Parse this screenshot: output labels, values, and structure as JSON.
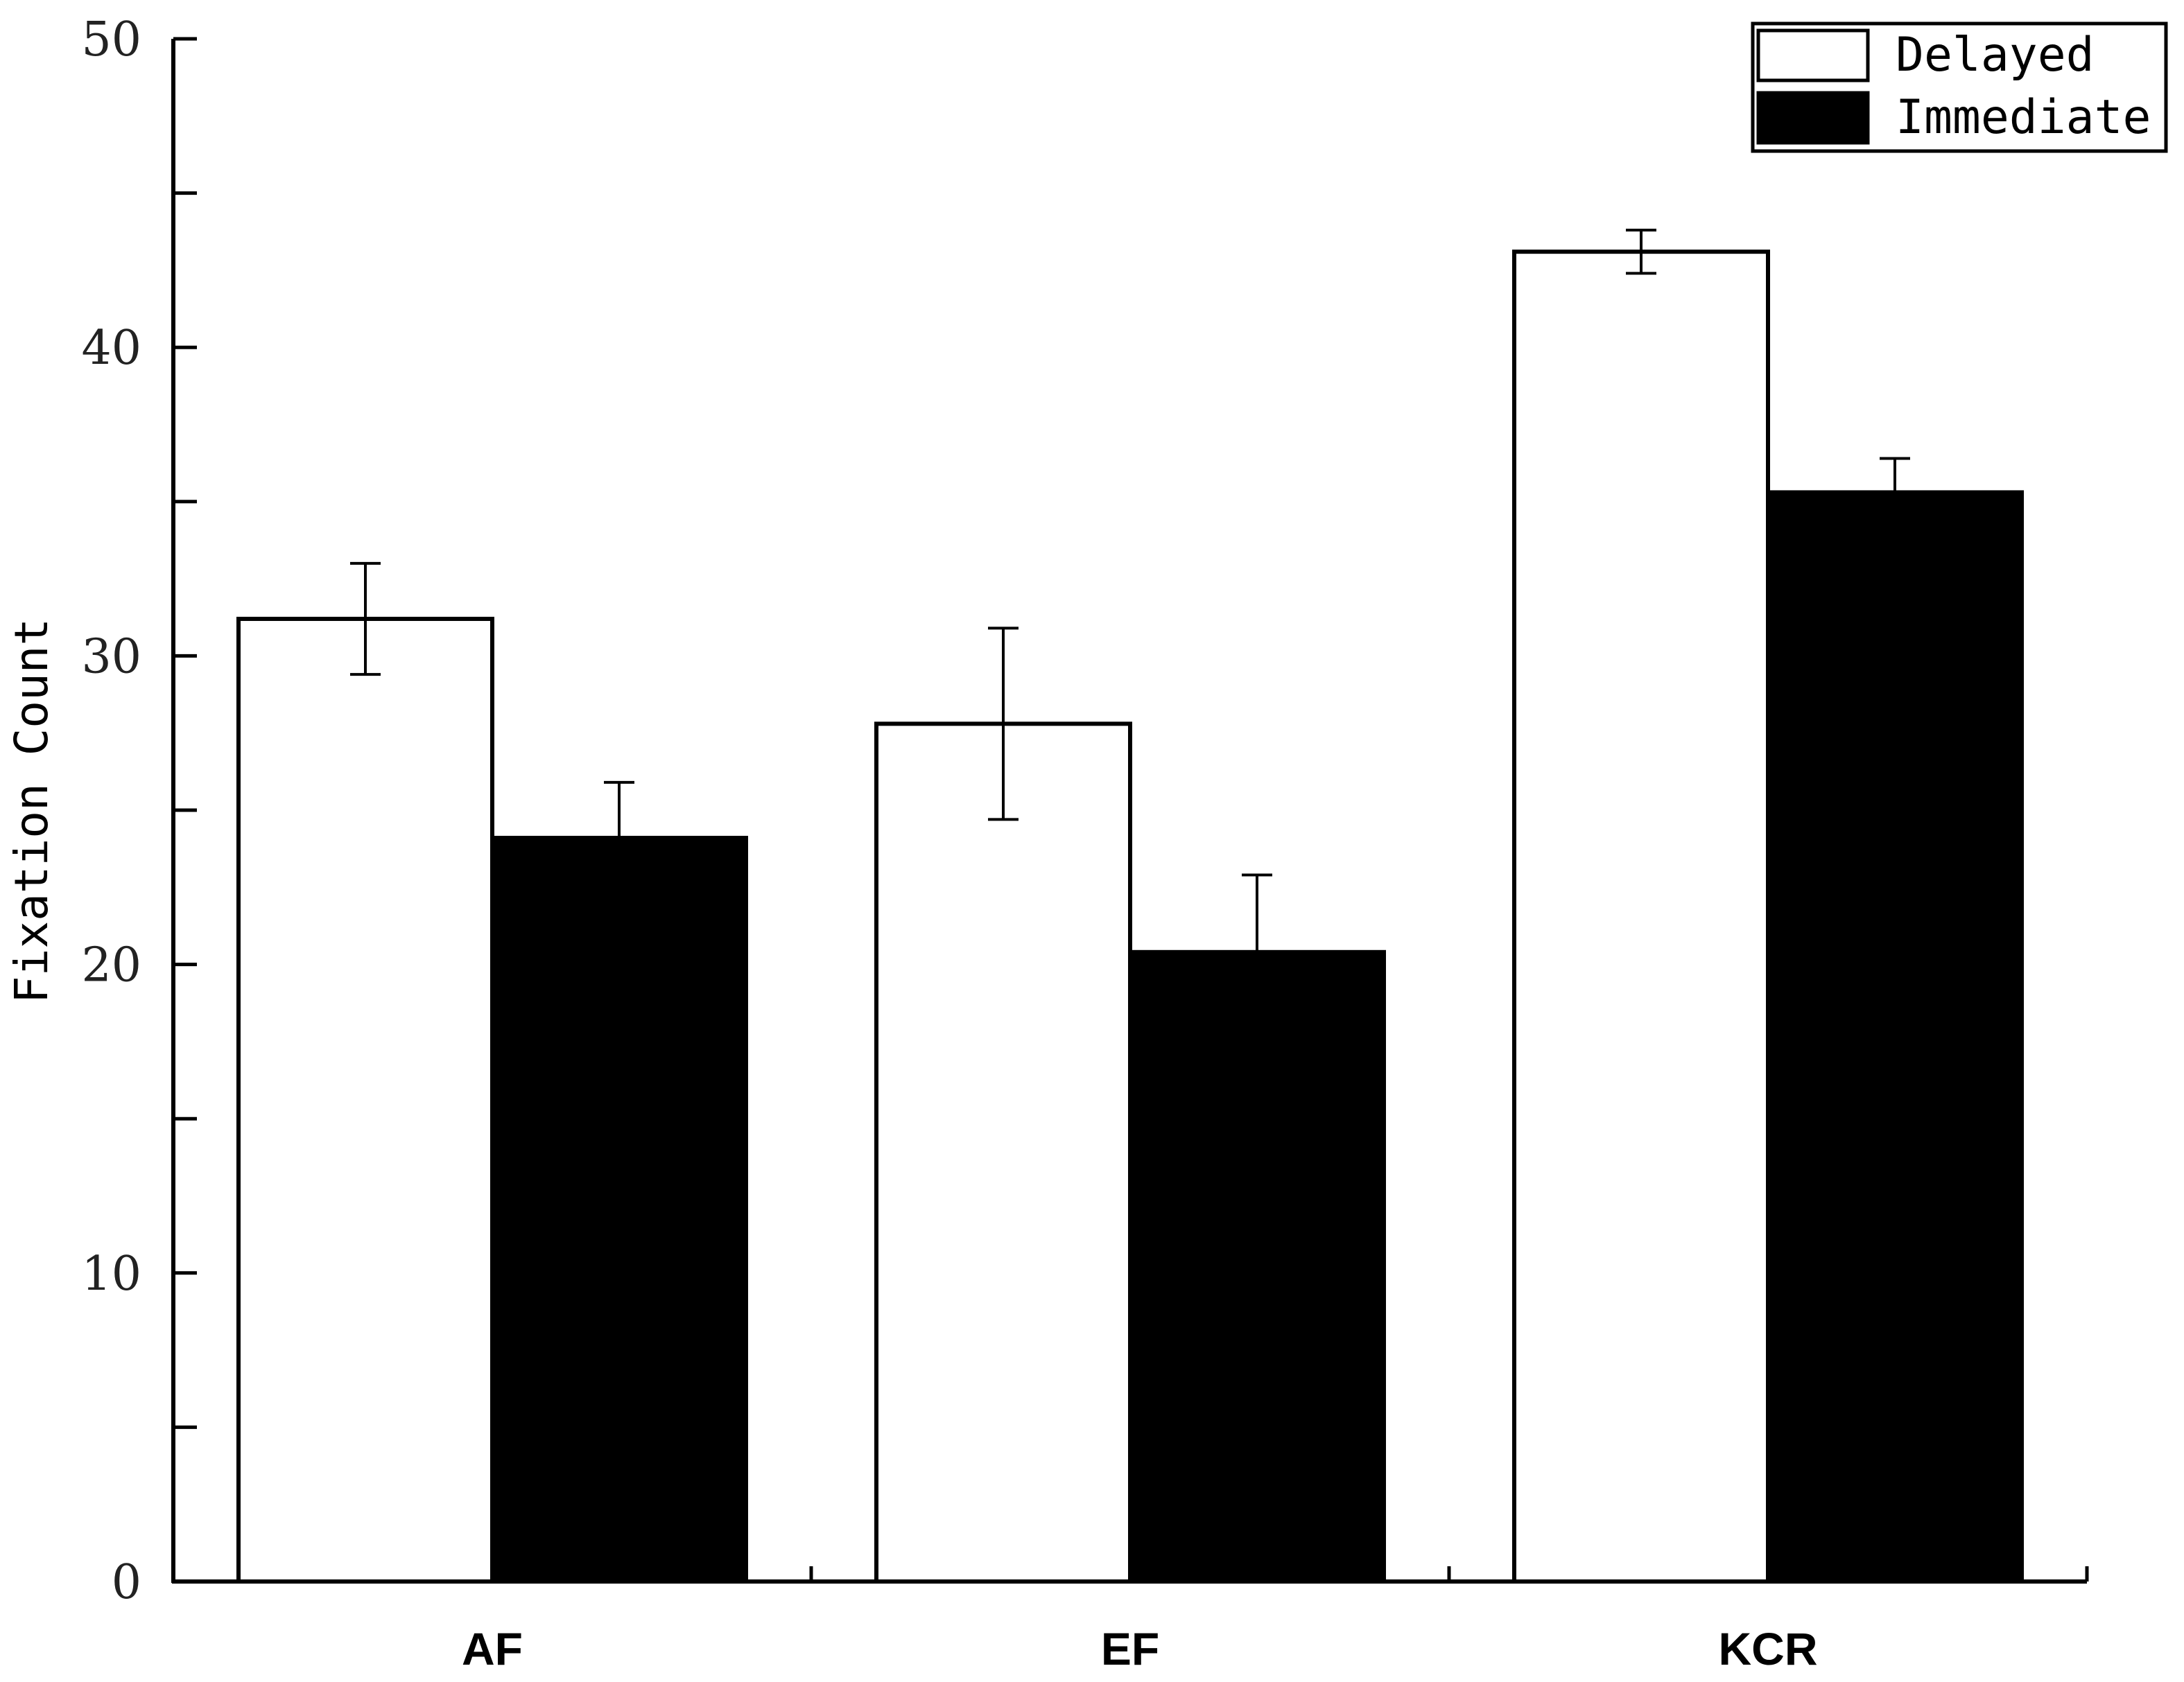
{
  "chart_data": {
    "type": "bar",
    "title": "",
    "xlabel": "",
    "ylabel": "Fixation Count",
    "categories": [
      "AF",
      "EF",
      "KCR"
    ],
    "ylim": [
      0,
      50
    ],
    "yticks": [
      0,
      10,
      20,
      30,
      40,
      50
    ],
    "minor_ytick_step": 5,
    "grid": false,
    "legend_position": "top-right",
    "series": [
      {
        "name": "Delayed",
        "color": "#ffffff",
        "edge_color": "#000000",
        "values": [
          31.2,
          27.8,
          43.1
        ],
        "errors": [
          1.8,
          3.1,
          0.7
        ]
      },
      {
        "name": "Immediate",
        "color": "#000000",
        "edge_color": "#000000",
        "values": [
          24.1,
          20.4,
          35.3
        ],
        "errors": [
          1.8,
          2.5,
          1.1
        ]
      }
    ]
  }
}
